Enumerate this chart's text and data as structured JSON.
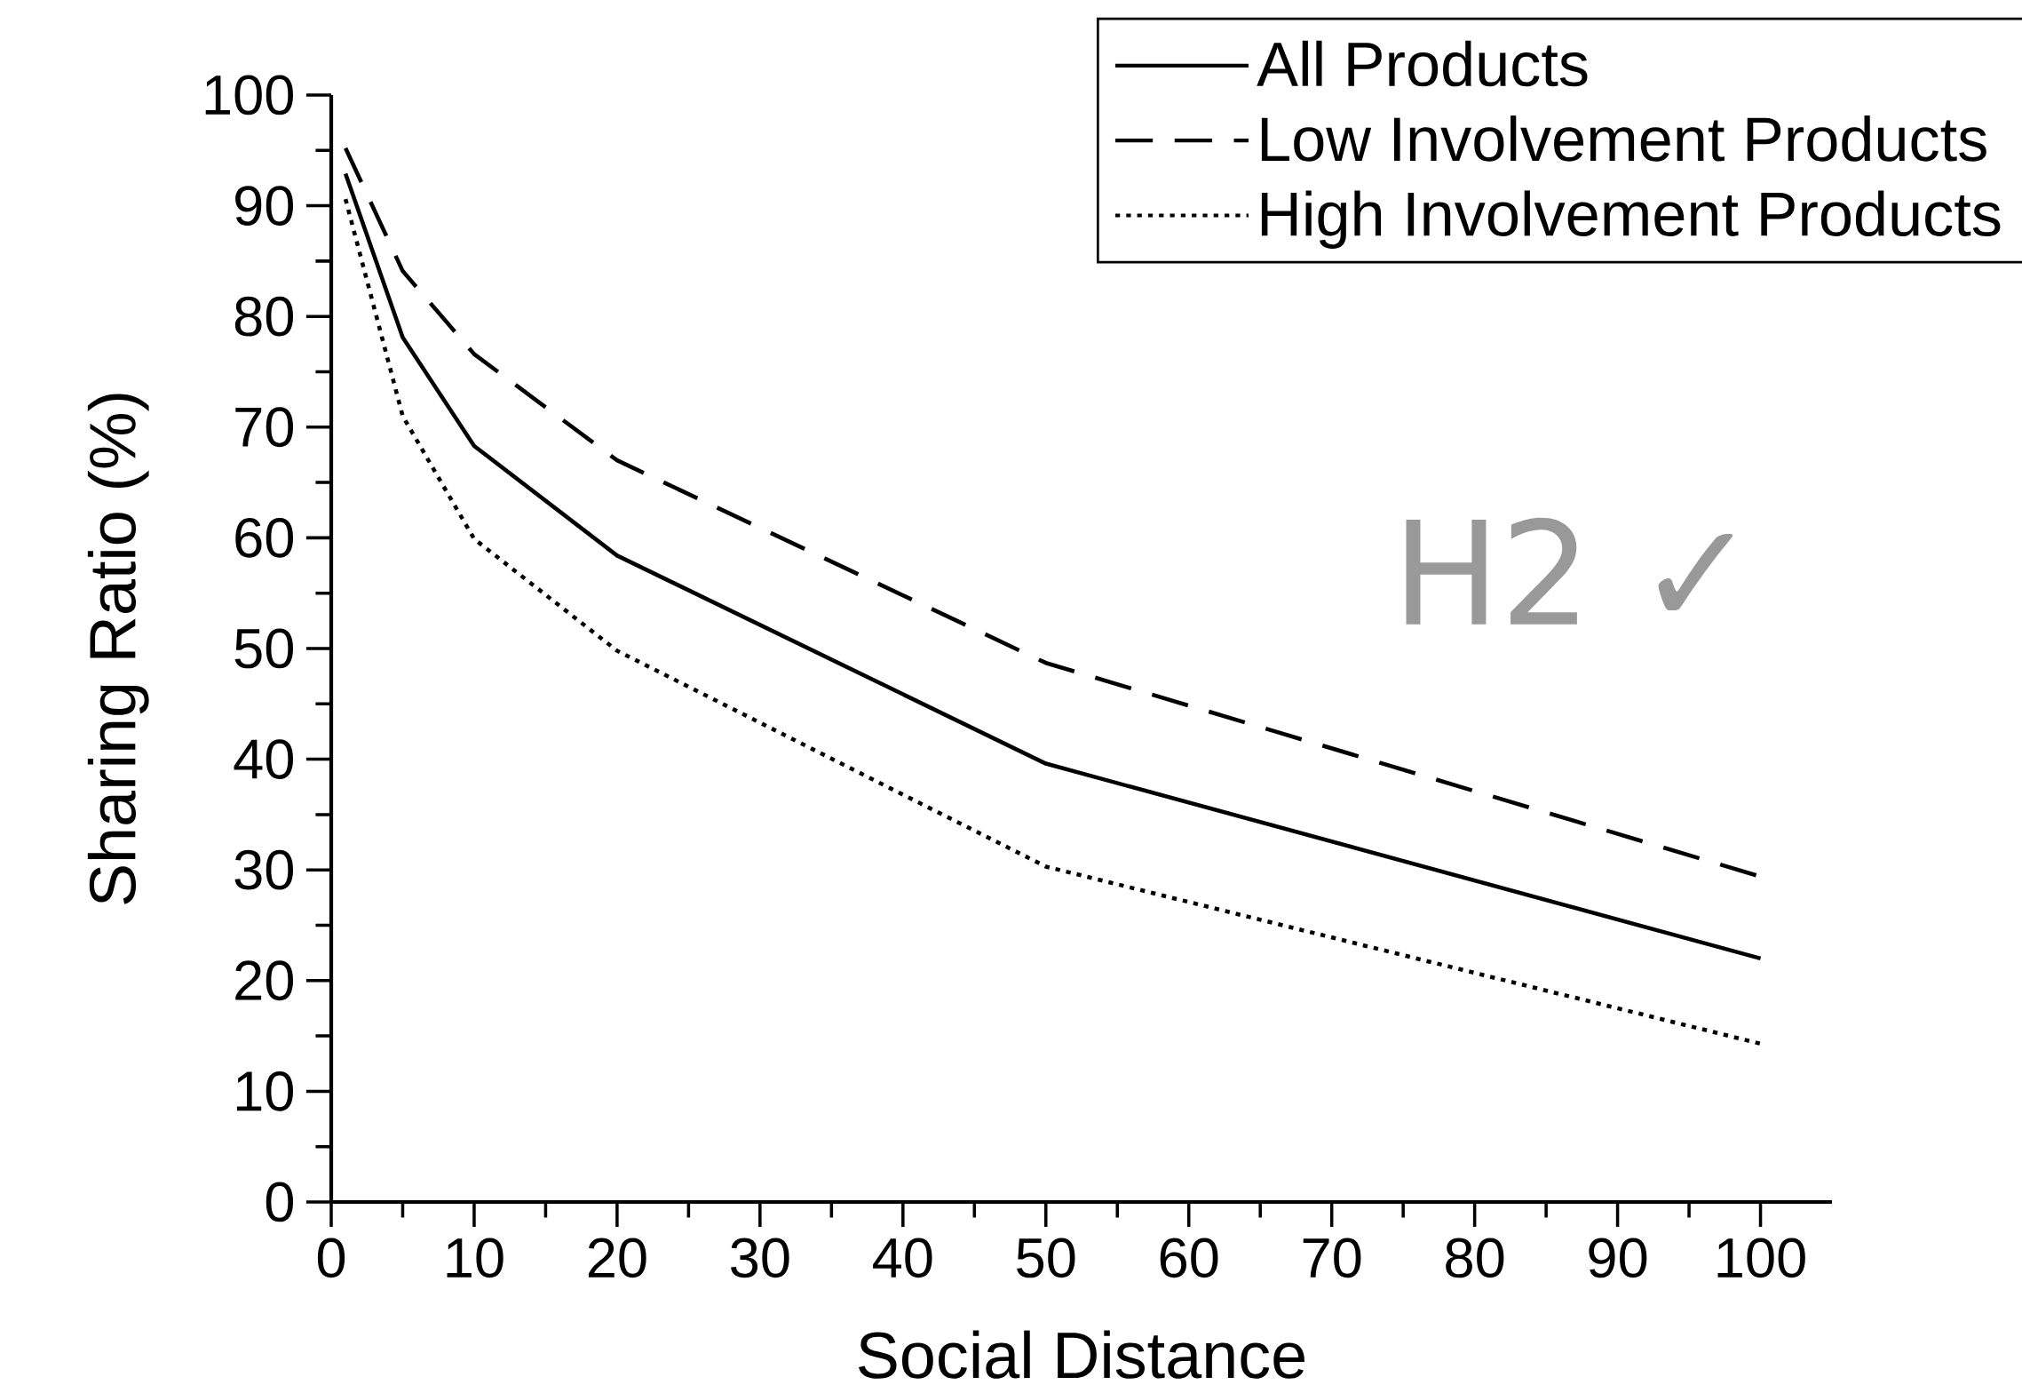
{
  "chart_data": {
    "type": "line",
    "xlabel": "Social Distance",
    "ylabel": "Sharing Ratio (%)",
    "xlim": [
      0,
      105
    ],
    "ylim": [
      0,
      100
    ],
    "xticks": [
      0,
      10,
      20,
      30,
      40,
      50,
      60,
      70,
      80,
      90,
      100
    ],
    "yticks": [
      0,
      10,
      20,
      30,
      40,
      50,
      60,
      70,
      80,
      90,
      100
    ],
    "x": [
      1,
      5,
      10,
      20,
      50,
      100
    ],
    "series": [
      {
        "name": "All Products",
        "color": "#000000",
        "line_style": "solid",
        "values": [
          92.9,
          78.1,
          68.3,
          58.4,
          39.6,
          22.0
        ]
      },
      {
        "name": "Low Involvement Products",
        "color": "#000000",
        "line_style": "dashed",
        "values": [
          95.2,
          84.1,
          76.6,
          67.0,
          48.7,
          29.4
        ]
      },
      {
        "name": "High Involvement Products",
        "color": "#000000",
        "line_style": "dotted",
        "values": [
          90.6,
          71.0,
          59.9,
          49.8,
          30.3,
          14.3
        ]
      }
    ],
    "annotations": [
      "H2 ✓"
    ],
    "grid": false,
    "legend": "top right",
    "marker": "none"
  }
}
